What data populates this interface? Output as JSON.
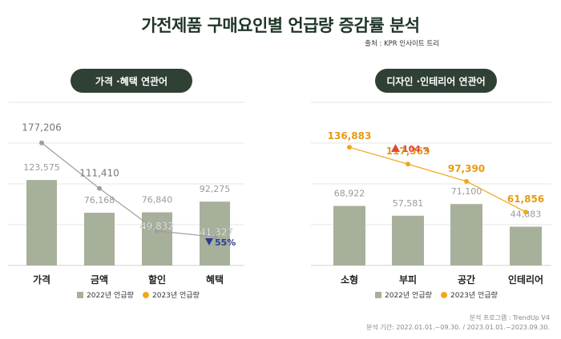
{
  "title": "가전제품 구매요인별 언급량 증감률 분석",
  "source": "출처 : KPR 인사이트 트리",
  "colors": {
    "bar": "#a7b09a",
    "line_left": "#9e9e9e",
    "line_right": "#f0a81a",
    "up": "#e0473a",
    "down": "#2a3b8f",
    "pill": "#2f4034"
  },
  "chart_data": [
    {
      "type": "bar",
      "title": "가격 ·혜택 연관어",
      "categories": [
        "가격",
        "금액",
        "할인",
        "혜택"
      ],
      "series": [
        {
          "name": "2022년 언급량",
          "values": [
            123575,
            76168,
            76840,
            92275
          ],
          "labels": [
            "123,575",
            "76,168",
            "76,840",
            "92,275"
          ]
        },
        {
          "name": "2023년 언급량",
          "values": [
            177206,
            111410,
            49832,
            41327
          ],
          "labels": [
            "177,206",
            "111,410",
            "49,832",
            "41,327"
          ]
        }
      ],
      "annotation": {
        "text": "55%",
        "direction": "down",
        "category": "혜택"
      }
    },
    {
      "type": "bar",
      "title": "디자인 ·인테리어 연관어",
      "categories": [
        "소형",
        "부피",
        "공간",
        "인테리어"
      ],
      "series": [
        {
          "name": "2022년 언급량",
          "values": [
            68922,
            57581,
            71100,
            44883
          ],
          "labels": [
            "68,922",
            "57,581",
            "71,100",
            "44,883"
          ]
        },
        {
          "name": "2023년 언급량",
          "values": [
            136883,
            117363,
            97390,
            61856
          ],
          "labels": [
            "136,883",
            "117,363",
            "97,390",
            "61,856"
          ]
        }
      ],
      "annotation": {
        "text": "104",
        "unit": "%",
        "direction": "up",
        "category": "부피"
      }
    }
  ],
  "footer": {
    "program": "분석 프로그램 : TrendUp V4",
    "period": "분석 기간: 2022.01.01.~09.30. / 2023.01.01.~2023.09.30."
  }
}
